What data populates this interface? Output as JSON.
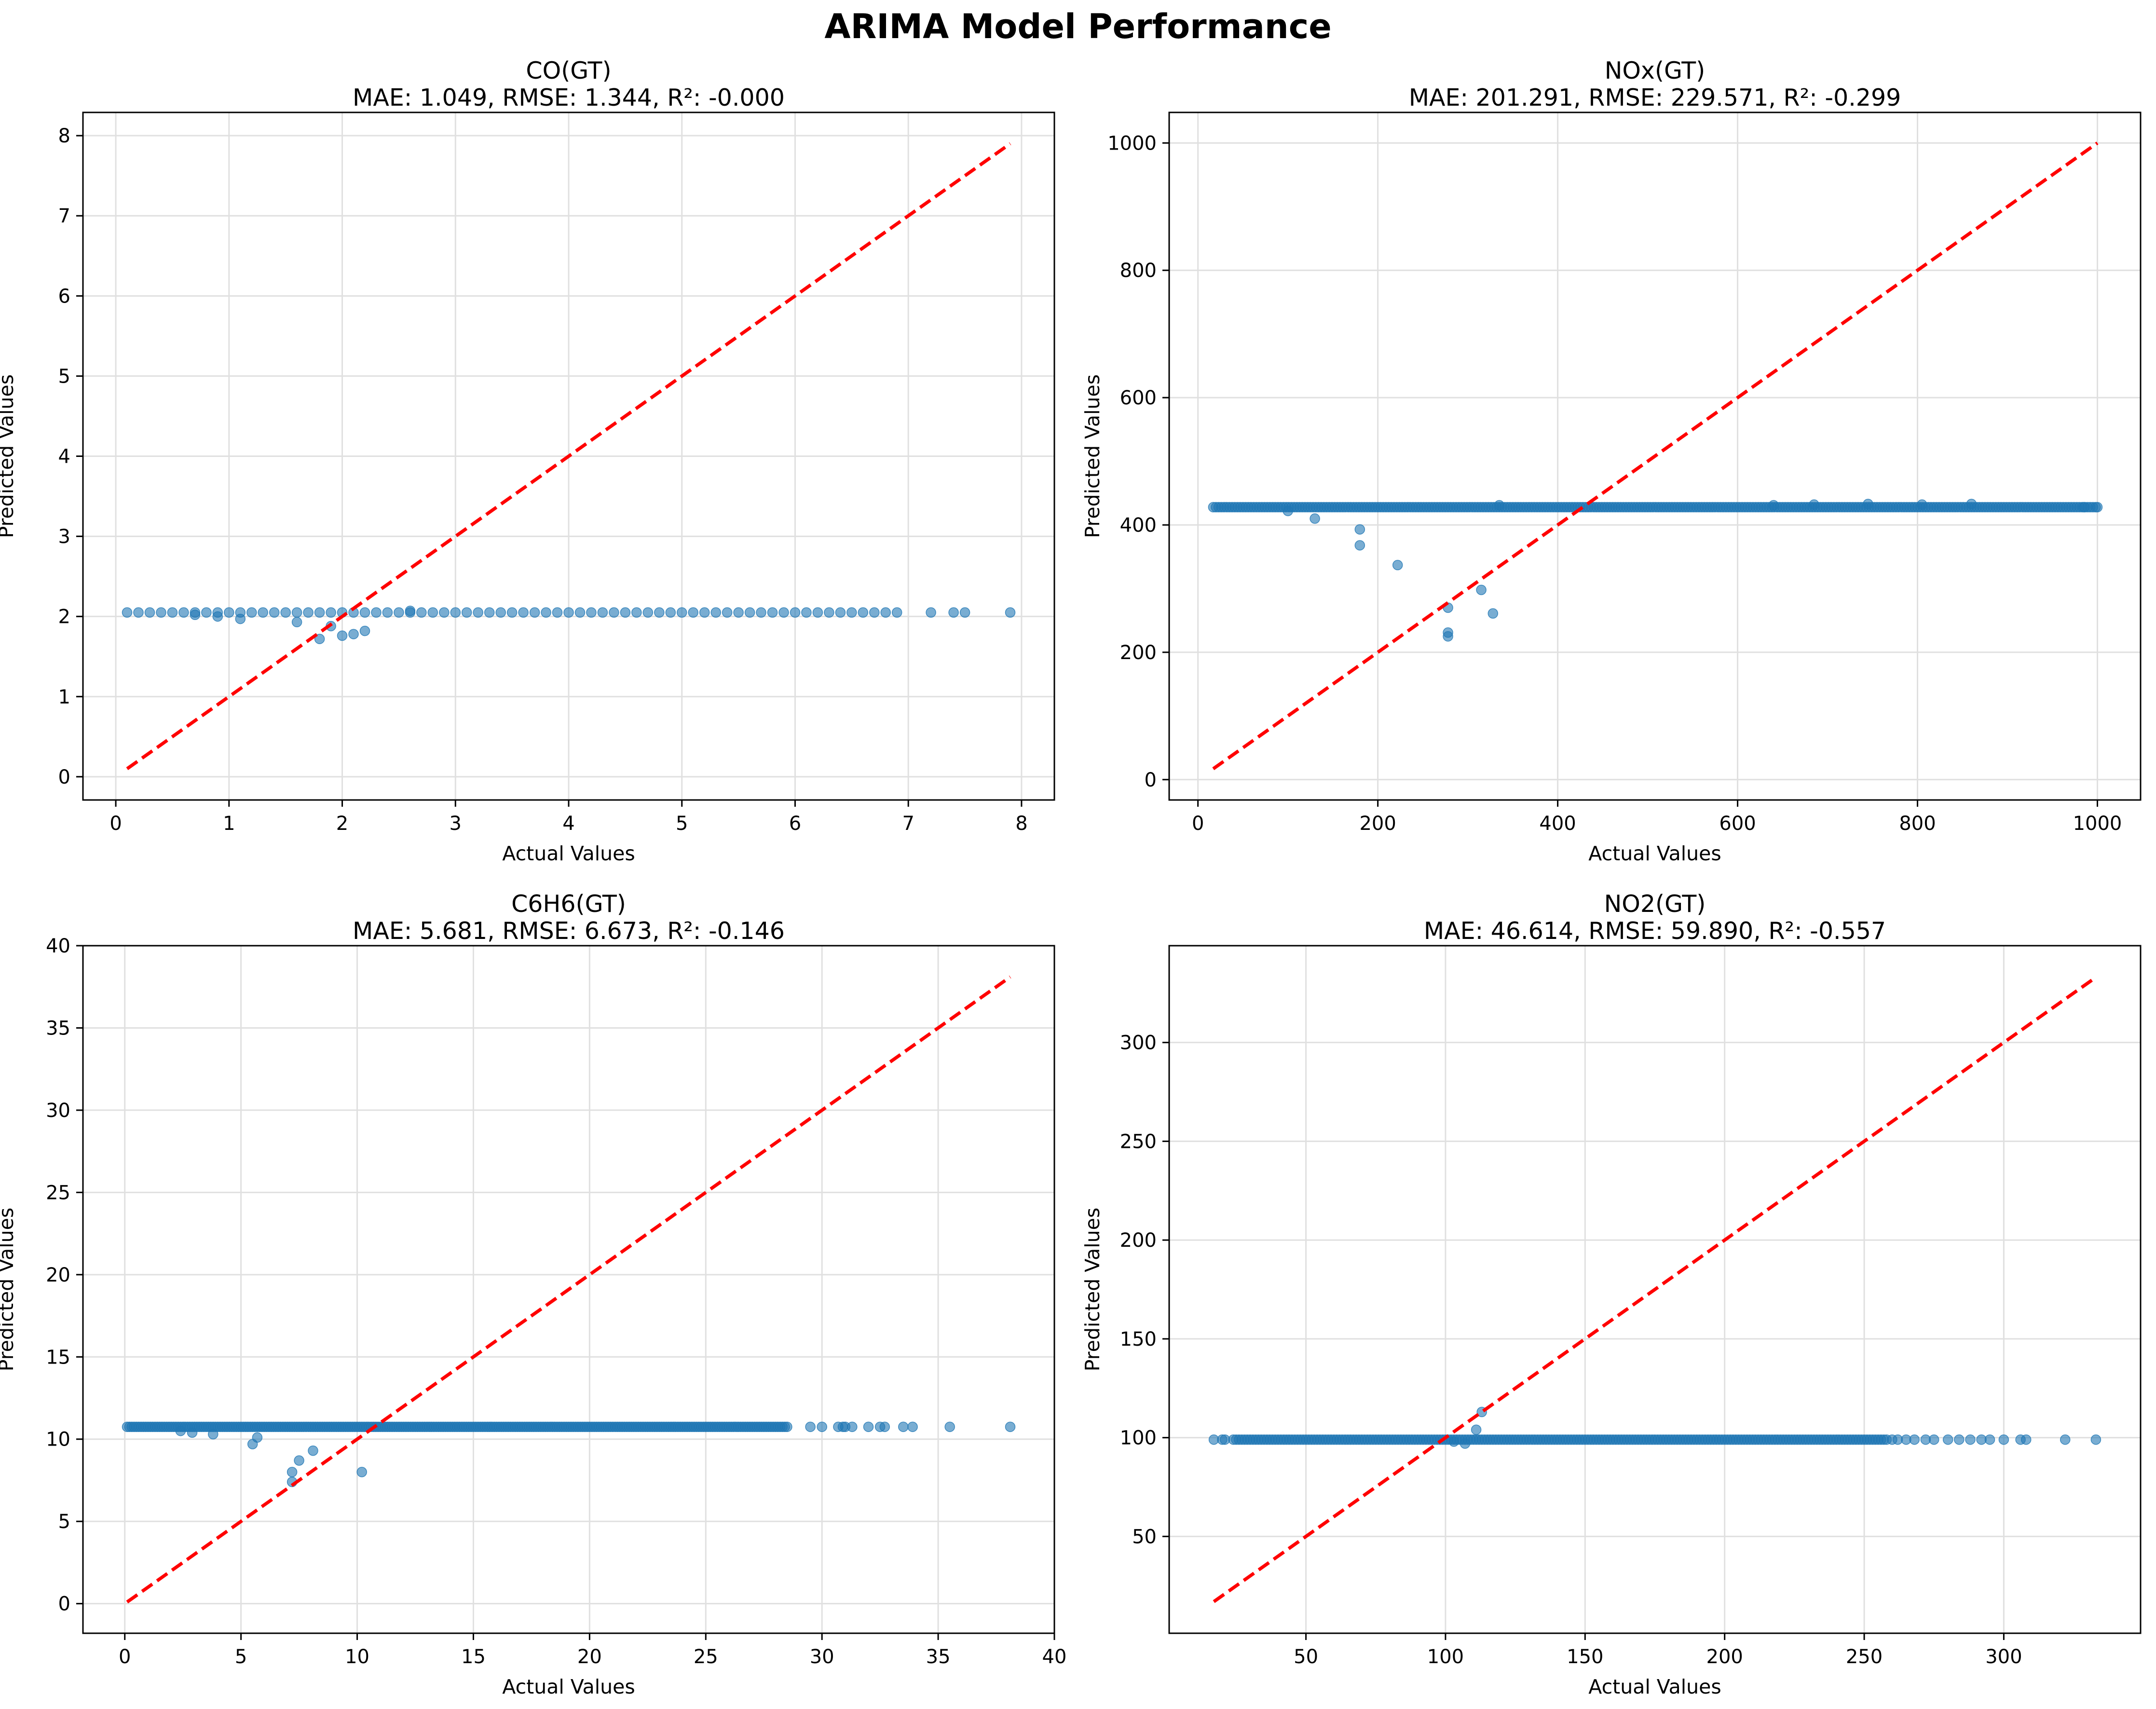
{
  "suptitle": "ARIMA Model Performance",
  "colors": {
    "points": "#1f77b4",
    "ideal_line": "#ff0000",
    "grid": "#e0e0e0",
    "axes": "#000000"
  },
  "chart_data": [
    {
      "type": "scatter",
      "title": "CO(GT)",
      "subtitle": "MAE: 1.049, RMSE: 1.344, R²: -0.000",
      "xlabel": "Actual Values",
      "ylabel": "Predicted Values",
      "xlim": [
        -0.29,
        8.29
      ],
      "ylim": [
        -0.29,
        8.29
      ],
      "xticks": [
        0,
        1,
        2,
        3,
        4,
        5,
        6,
        7,
        8
      ],
      "yticks": [
        0,
        1,
        2,
        3,
        4,
        5,
        6,
        7,
        8
      ],
      "tick_labels_x": [
        "0",
        "1",
        "2",
        "3",
        "4",
        "5",
        "6",
        "7",
        "8"
      ],
      "tick_labels_y": [
        "0",
        "1",
        "2",
        "3",
        "4",
        "5",
        "6",
        "7",
        "8"
      ],
      "grid": true,
      "ideal_line": [
        [
          0.1,
          0.1
        ],
        [
          7.9,
          7.9
        ]
      ],
      "band": {
        "x_from": 0.1,
        "x_to": 6.9,
        "x_step": 0.1,
        "y": 2.05
      },
      "points": [
        [
          7.2,
          2.05
        ],
        [
          7.4,
          2.05
        ],
        [
          7.5,
          2.05
        ],
        [
          7.9,
          2.05
        ],
        [
          0.9,
          2.0
        ],
        [
          1.1,
          1.97
        ],
        [
          1.6,
          1.93
        ],
        [
          1.8,
          1.72
        ],
        [
          1.9,
          1.88
        ],
        [
          2.0,
          1.76
        ],
        [
          2.1,
          1.78
        ],
        [
          2.2,
          1.82
        ],
        [
          0.7,
          2.02
        ],
        [
          2.6,
          2.07
        ]
      ]
    },
    {
      "type": "scatter",
      "title": "NOx(GT)",
      "subtitle": "MAE: 201.291, RMSE: 229.571, R²: -0.299",
      "xlabel": "Actual Values",
      "ylabel": "Predicted Values",
      "xlim": [
        -32,
        1048
      ],
      "ylim": [
        -32,
        1048
      ],
      "xticks": [
        0,
        200,
        400,
        600,
        800,
        1000
      ],
      "yticks": [
        0,
        200,
        400,
        600,
        800,
        1000
      ],
      "tick_labels_x": [
        "0",
        "200",
        "400",
        "600",
        "800",
        "1000"
      ],
      "tick_labels_y": [
        "0",
        "200",
        "400",
        "600",
        "800",
        "1000"
      ],
      "grid": true,
      "ideal_line": [
        [
          17,
          17
        ],
        [
          1000,
          1000
        ]
      ],
      "band": {
        "x_from": 17,
        "x_to": 1000,
        "x_step": 3,
        "y": 428
      },
      "points": [
        [
          100,
          422
        ],
        [
          130,
          410
        ],
        [
          180,
          393
        ],
        [
          180,
          368
        ],
        [
          222,
          337
        ],
        [
          278,
          270
        ],
        [
          278,
          231
        ],
        [
          278,
          225
        ],
        [
          315,
          298
        ],
        [
          328,
          261
        ],
        [
          335,
          431
        ],
        [
          640,
          431
        ],
        [
          685,
          432
        ],
        [
          745,
          433
        ],
        [
          805,
          432
        ],
        [
          860,
          433
        ],
        [
          985,
          428
        ],
        [
          1000,
          428
        ]
      ]
    },
    {
      "type": "scatter",
      "title": "C6H6(GT)",
      "subtitle": "MAE: 5.681, RMSE: 6.673, R²: -0.146",
      "xlabel": "Actual Values",
      "ylabel": "Predicted Values",
      "xlim": [
        -1.8,
        40
      ],
      "ylim": [
        -1.8,
        40
      ],
      "xticks": [
        0,
        5,
        10,
        15,
        20,
        25,
        30,
        35,
        40
      ],
      "yticks": [
        0,
        5,
        10,
        15,
        20,
        25,
        30,
        35,
        40
      ],
      "tick_labels_x": [
        "0",
        "5",
        "10",
        "15",
        "20",
        "25",
        "30",
        "35",
        "40"
      ],
      "tick_labels_y": [
        "0",
        "5",
        "10",
        "15",
        "20",
        "25",
        "30",
        "35",
        "40"
      ],
      "grid": true,
      "ideal_line": [
        [
          0.1,
          0.1
        ],
        [
          38.1,
          38.1
        ]
      ],
      "band": {
        "x_from": 0.1,
        "x_to": 28.5,
        "x_step": 0.1,
        "y": 10.75
      },
      "points": [
        [
          29.5,
          10.75
        ],
        [
          30.0,
          10.75
        ],
        [
          30.7,
          10.75
        ],
        [
          30.9,
          10.75
        ],
        [
          31.0,
          10.75
        ],
        [
          31.3,
          10.75
        ],
        [
          32.0,
          10.75
        ],
        [
          32.5,
          10.75
        ],
        [
          32.7,
          10.75
        ],
        [
          33.5,
          10.75
        ],
        [
          33.9,
          10.75
        ],
        [
          35.5,
          10.75
        ],
        [
          38.1,
          10.75
        ],
        [
          2.4,
          10.5
        ],
        [
          2.9,
          10.4
        ],
        [
          3.8,
          10.3
        ],
        [
          5.5,
          9.7
        ],
        [
          5.7,
          10.1
        ],
        [
          7.2,
          8.0
        ],
        [
          7.2,
          7.4
        ],
        [
          7.5,
          8.7
        ],
        [
          8.1,
          9.3
        ],
        [
          10.2,
          8.0
        ]
      ]
    },
    {
      "type": "scatter",
      "title": "NO2(GT)",
      "subtitle": "MAE: 46.614, RMSE: 59.890, R²: -0.557",
      "xlabel": "Actual Values",
      "ylabel": "Predicted Values",
      "xlim": [
        1,
        349
      ],
      "ylim": [
        1,
        349
      ],
      "xticks": [
        50,
        100,
        150,
        200,
        250,
        300
      ],
      "yticks": [
        50,
        100,
        150,
        200,
        250,
        300
      ],
      "tick_labels_x": [
        "50",
        "100",
        "150",
        "200",
        "250",
        "300"
      ],
      "tick_labels_y": [
        "50",
        "100",
        "150",
        "200",
        "250",
        "300"
      ],
      "grid": true,
      "ideal_line": [
        [
          17,
          17
        ],
        [
          333,
          333
        ]
      ],
      "band": {
        "x_from": 24,
        "x_to": 258,
        "x_step": 1,
        "y": 99
      },
      "points": [
        [
          17,
          99
        ],
        [
          20,
          99
        ],
        [
          21,
          99
        ],
        [
          260,
          99
        ],
        [
          262,
          99
        ],
        [
          265,
          99
        ],
        [
          268,
          99
        ],
        [
          272,
          99
        ],
        [
          275,
          99
        ],
        [
          280,
          99
        ],
        [
          284,
          99
        ],
        [
          288,
          99
        ],
        [
          292,
          99
        ],
        [
          295,
          99
        ],
        [
          300,
          99
        ],
        [
          306,
          99
        ],
        [
          308,
          99
        ],
        [
          322,
          99
        ],
        [
          333,
          99
        ],
        [
          103,
          98
        ],
        [
          107,
          97
        ],
        [
          111,
          104
        ],
        [
          113,
          113
        ]
      ]
    }
  ]
}
